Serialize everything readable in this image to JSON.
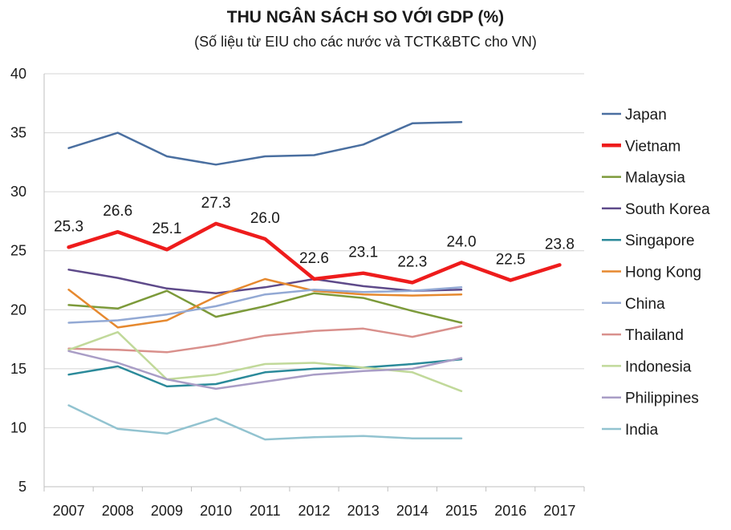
{
  "chart_data": {
    "type": "line",
    "title": "THU NGÂN SÁCH SO VỚI GDP (%)",
    "subtitle": "(Số liệu từ EIU cho các nước và TCTK&BTC cho VN)",
    "xlabel": "",
    "ylabel": "",
    "categories": [
      "2007",
      "2008",
      "2009",
      "2010",
      "2011",
      "2012",
      "2013",
      "2014",
      "2015",
      "2016",
      "2017"
    ],
    "ylim": [
      5,
      40
    ],
    "yticks": [
      5,
      10,
      15,
      20,
      25,
      30,
      35,
      40
    ],
    "grid": "horizontal",
    "legend_position": "right",
    "series": [
      {
        "name": "Japan",
        "color": "#4a6fa0",
        "width": 2.5,
        "values": [
          33.7,
          35.0,
          33.0,
          32.3,
          33.0,
          33.1,
          34.0,
          35.8,
          35.9,
          null,
          null
        ]
      },
      {
        "name": "Vietnam",
        "color": "#ee1c1c",
        "width": 4.5,
        "values": [
          25.3,
          26.6,
          25.1,
          27.3,
          26.0,
          22.6,
          23.1,
          22.3,
          24.0,
          22.5,
          23.8
        ],
        "labels": true
      },
      {
        "name": "Malaysia",
        "color": "#7c9a3a",
        "width": 2.5,
        "values": [
          20.4,
          20.1,
          21.6,
          19.4,
          20.3,
          21.4,
          21.0,
          19.9,
          18.9,
          null,
          null
        ]
      },
      {
        "name": "South Korea",
        "color": "#5e4a8a",
        "width": 2.5,
        "values": [
          23.4,
          22.7,
          21.8,
          21.4,
          21.9,
          22.6,
          22.0,
          21.6,
          21.7,
          null,
          null
        ]
      },
      {
        "name": "Singapore",
        "color": "#2b8a9a",
        "width": 2.5,
        "values": [
          14.5,
          15.2,
          13.5,
          13.7,
          14.7,
          15.0,
          15.1,
          15.4,
          15.8,
          null,
          null
        ]
      },
      {
        "name": "Hong Kong",
        "color": "#e6892f",
        "width": 2.5,
        "values": [
          21.7,
          18.5,
          19.1,
          21.1,
          22.6,
          21.6,
          21.3,
          21.2,
          21.3,
          null,
          null
        ]
      },
      {
        "name": "China",
        "color": "#93a9d4",
        "width": 2.5,
        "values": [
          18.9,
          19.1,
          19.6,
          20.3,
          21.3,
          21.7,
          21.5,
          21.6,
          21.9,
          null,
          null
        ]
      },
      {
        "name": "Thailand",
        "color": "#d9908c",
        "width": 2.5,
        "values": [
          16.7,
          16.6,
          16.4,
          17.0,
          17.8,
          18.2,
          18.4,
          17.7,
          18.6,
          null,
          null
        ]
      },
      {
        "name": "Indonesia",
        "color": "#c1d99a",
        "width": 2.5,
        "values": [
          16.6,
          18.1,
          14.1,
          14.5,
          15.4,
          15.5,
          15.1,
          14.7,
          13.1,
          null,
          null
        ]
      },
      {
        "name": "Philippines",
        "color": "#a99dc6",
        "width": 2.5,
        "values": [
          16.5,
          15.5,
          14.1,
          13.3,
          13.9,
          14.5,
          14.8,
          15.0,
          15.9,
          null,
          null
        ]
      },
      {
        "name": "India",
        "color": "#92c3d0",
        "width": 2.5,
        "values": [
          11.9,
          9.9,
          9.5,
          10.8,
          9.0,
          9.2,
          9.3,
          9.1,
          9.1,
          null,
          null
        ]
      }
    ]
  }
}
